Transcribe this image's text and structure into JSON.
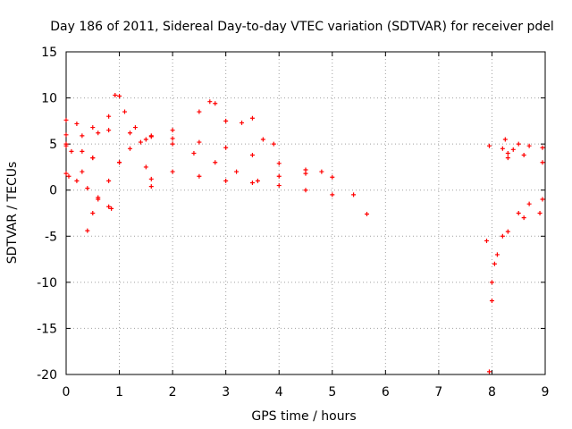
{
  "chart_data": {
    "type": "scatter",
    "title": "Day 186 of 2011, Sidereal Day-to-day VTEC variation (SDTVAR) for receiver pdel",
    "xlabel": "GPS time / hours",
    "ylabel": "SDTVAR / TECUs",
    "xlim": [
      0,
      9
    ],
    "ylim": [
      -20,
      15
    ],
    "xticks": [
      "0",
      "1",
      "2",
      "3",
      "4",
      "5",
      "6",
      "7",
      "8",
      "9"
    ],
    "yticks": [
      "15",
      "10",
      "5",
      "0",
      "-5",
      "-10",
      "-15",
      "-20"
    ],
    "grid": true,
    "marker": "+",
    "color": "#ff0000",
    "series": [
      {
        "points": [
          [
            0.0,
            7.6
          ],
          [
            0.2,
            7.2
          ],
          [
            0.5,
            6.8
          ],
          [
            0.8,
            6.5
          ],
          [
            1.2,
            6.2
          ],
          [
            1.6,
            5.9
          ],
          [
            2.0,
            5.6
          ],
          [
            2.5,
            5.2
          ],
          [
            3.0,
            4.6
          ],
          [
            3.5,
            3.8
          ],
          [
            4.0,
            2.9
          ],
          [
            4.5,
            2.2
          ],
          [
            5.0,
            1.4
          ],
          [
            5.4,
            -0.5
          ],
          [
            5.65,
            -2.6
          ],
          [
            0.0,
            6.0
          ],
          [
            0.3,
            5.9
          ],
          [
            0.6,
            6.2
          ],
          [
            0.8,
            8.0
          ],
          [
            0.92,
            10.3
          ],
          [
            1.0,
            10.2
          ],
          [
            1.1,
            8.5
          ],
          [
            1.3,
            6.8
          ],
          [
            1.6,
            5.8
          ],
          [
            2.0,
            5.0
          ],
          [
            2.4,
            4.0
          ],
          [
            2.8,
            3.0
          ],
          [
            3.2,
            2.0
          ],
          [
            3.6,
            1.0
          ],
          [
            4.0,
            1.5
          ],
          [
            4.5,
            1.8
          ],
          [
            4.8,
            2.0
          ],
          [
            1.5,
            5.5
          ],
          [
            2.0,
            6.5
          ],
          [
            2.5,
            8.5
          ],
          [
            2.7,
            9.6
          ],
          [
            2.8,
            9.4
          ],
          [
            3.0,
            7.5
          ],
          [
            3.3,
            7.3
          ],
          [
            3.5,
            7.8
          ],
          [
            3.7,
            5.5
          ],
          [
            3.9,
            5.0
          ],
          [
            0.0,
            5.0
          ],
          [
            0.3,
            4.2
          ],
          [
            0.5,
            3.5
          ],
          [
            1.0,
            3.0
          ],
          [
            1.5,
            2.5
          ],
          [
            2.0,
            2.0
          ],
          [
            2.5,
            1.5
          ],
          [
            3.0,
            1.0
          ],
          [
            3.5,
            0.8
          ],
          [
            4.0,
            0.5
          ],
          [
            4.5,
            0.0
          ],
          [
            5.0,
            -0.5
          ],
          [
            0.0,
            1.8
          ],
          [
            0.2,
            1.0
          ],
          [
            0.4,
            0.2
          ],
          [
            0.6,
            -0.8
          ],
          [
            0.8,
            -1.8
          ],
          [
            0.85,
            -2.0
          ],
          [
            0.4,
            -4.4
          ],
          [
            0.5,
            -2.5
          ],
          [
            0.6,
            -1.0
          ],
          [
            0.8,
            1.0
          ],
          [
            1.0,
            3.0
          ],
          [
            1.2,
            4.5
          ],
          [
            1.4,
            5.2
          ],
          [
            0.3,
            2.0
          ],
          [
            0.5,
            3.5
          ],
          [
            1.6,
            0.4
          ],
          [
            1.6,
            1.2
          ],
          [
            0.0,
            4.8
          ],
          [
            0.1,
            4.2
          ],
          [
            0.05,
            1.5
          ],
          [
            7.95,
            4.8
          ],
          [
            7.9,
            -5.5
          ],
          [
            8.0,
            -12.0
          ],
          [
            7.95,
            -19.7
          ],
          [
            8.0,
            -10.0
          ],
          [
            8.1,
            -7.0
          ],
          [
            8.3,
            -4.5
          ],
          [
            8.6,
            -3.0
          ],
          [
            8.9,
            -2.5
          ],
          [
            8.05,
            -8.0
          ],
          [
            8.2,
            -5.0
          ],
          [
            8.5,
            -2.5
          ],
          [
            8.7,
            -1.5
          ],
          [
            8.95,
            -1.0
          ],
          [
            8.25,
            5.5
          ],
          [
            8.5,
            5.0
          ],
          [
            8.7,
            4.8
          ],
          [
            8.95,
            4.6
          ],
          [
            8.3,
            4.0
          ],
          [
            8.6,
            3.8
          ],
          [
            8.95,
            3.0
          ],
          [
            8.2,
            4.5
          ],
          [
            8.3,
            3.5
          ],
          [
            8.4,
            4.4
          ]
        ]
      }
    ]
  }
}
